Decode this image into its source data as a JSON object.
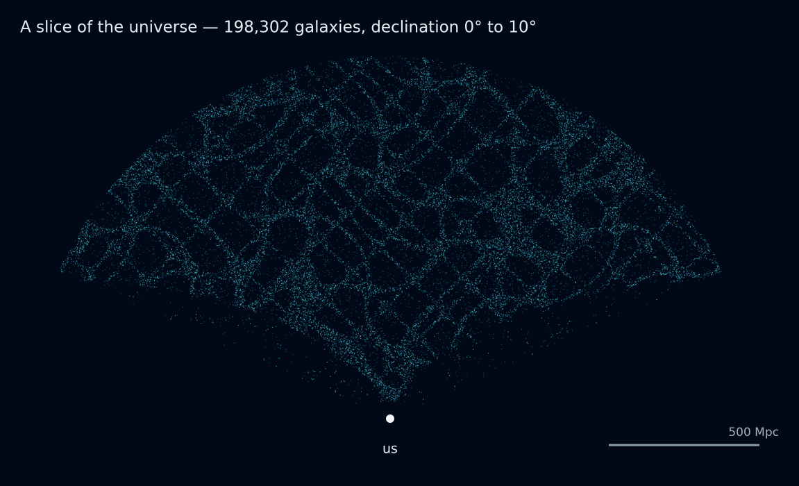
{
  "title": "A slice of the universe — 198,302 galaxies, declination 0° to 10°",
  "observer_label": "us",
  "scale_bar_label": "500 Mpc"
}
